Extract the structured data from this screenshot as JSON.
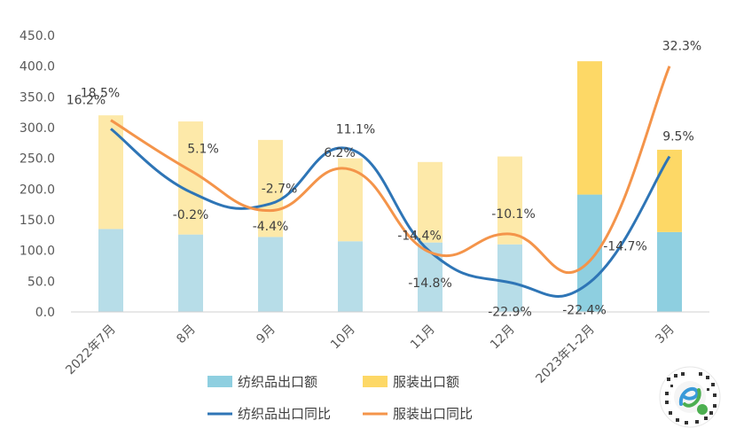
{
  "chart_data": {
    "type": "bar+line",
    "categories": [
      "2022年7月",
      "8月",
      "9月",
      "10月",
      "11月",
      "12月",
      "2023年1-2月",
      "3月"
    ],
    "ylim": [
      0,
      450
    ],
    "yticks": [
      "0.0",
      "50.0",
      "100.0",
      "150.0",
      "200.0",
      "250.0",
      "300.0",
      "350.0",
      "400.0",
      "450.0"
    ],
    "bars": {
      "textile_export": {
        "name": "纺织品出口额",
        "values": [
          135,
          126,
          122,
          115,
          113,
          110,
          191,
          130
        ]
      },
      "garment_export": {
        "name": "服装出口额",
        "values": [
          185,
          184,
          158,
          135,
          131,
          143,
          217,
          134
        ]
      }
    },
    "lines": {
      "textile_yoy": {
        "name": "纺织品出口同比",
        "display_y": [
          298,
          195,
          176,
          265,
          98,
          48,
          48,
          253
        ],
        "labels": [
          "16.2%",
          "-0.2%",
          "-4.4%",
          "11.1%",
          "-14.8%",
          "-22.9%",
          "-22.4%",
          "9.5%"
        ]
      },
      "garment_yoy": {
        "name": "服装出口同比",
        "display_y": [
          312,
          230,
          165,
          232,
          97,
          127,
          83,
          400
        ],
        "labels": [
          "18.5%",
          "5.1%",
          "-2.7%",
          "6.2%",
          "-14.4%",
          "-10.1%",
          "-14.7%",
          "32.3%"
        ]
      }
    },
    "colors": {
      "textile_bar": "#b7dde8",
      "textile_bar_highlight": "#8ecfe0",
      "garment_bar": "#fde9a9",
      "garment_bar_highlight": "#fdd866",
      "textile_line": "#2e75b6",
      "garment_line": "#f4944a"
    },
    "highlighted_categories": [
      6,
      7
    ],
    "grid": false,
    "legend": "bottom"
  }
}
